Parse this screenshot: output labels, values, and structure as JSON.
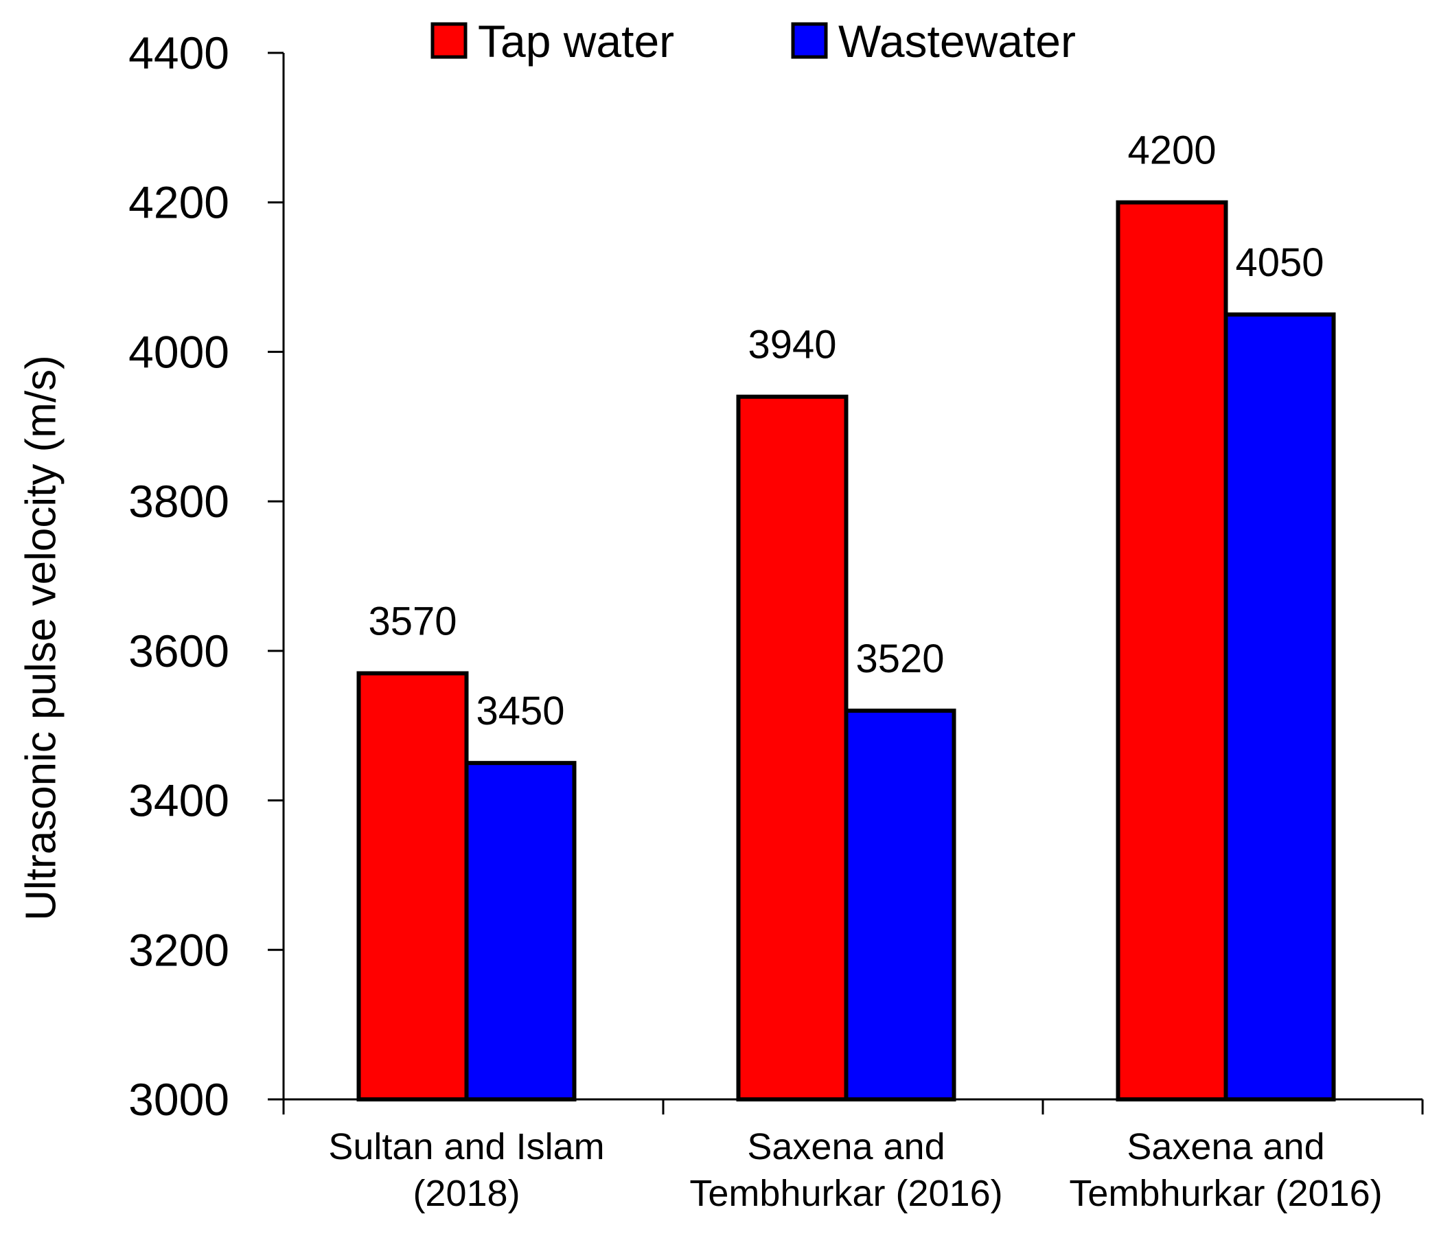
{
  "chart_data": {
    "type": "bar",
    "title": "",
    "xlabel": "",
    "ylabel": "Ultrasonic pulse velocity (m/s)",
    "ylim": [
      3000,
      4400
    ],
    "yticks": [
      3000,
      3200,
      3400,
      3600,
      3800,
      4000,
      4200,
      4400
    ],
    "ytick_labels": [
      "3000",
      "3200",
      "3400",
      "3600",
      "3800",
      "4000",
      "4200",
      "4400"
    ],
    "grid": false,
    "legend_position": "top-center",
    "categories": [
      [
        "Sultan and Islam",
        "(2018)"
      ],
      [
        "Saxena and",
        "Tembhurkar (2016)"
      ],
      [
        "Saxena and",
        "Tembhurkar (2016)"
      ]
    ],
    "series": [
      {
        "name": "Tap water",
        "color": "#ff0000",
        "values": [
          3570,
          3940,
          4200
        ],
        "labels": [
          "3570",
          "3940",
          "4200"
        ]
      },
      {
        "name": "Wastewater",
        "color": "#0000ff",
        "values": [
          3450,
          3520,
          4050
        ],
        "labels": [
          "3450",
          "3520",
          "4050"
        ]
      }
    ]
  }
}
